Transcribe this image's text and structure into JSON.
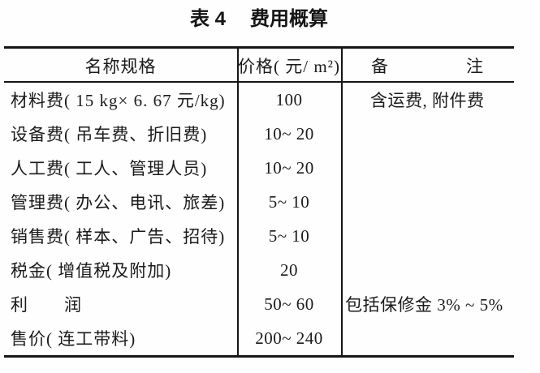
{
  "page": {
    "background": "#fefefe",
    "ink_color": "#1b1b1b",
    "rule_color": "#161616"
  },
  "title": {
    "tag": "表 4",
    "text": "费用概算"
  },
  "table": {
    "header": {
      "name": "名称规格",
      "price": "价格( 元/ m²)",
      "remark_left": "备",
      "remark_right": "注"
    },
    "rows": [
      {
        "name": "材料费( 15 kg× 6. 67 元/kg)",
        "price": "100",
        "remark": "含运费, 附件费"
      },
      {
        "name": "设备费( 吊车费、折旧费)",
        "price": "10~ 20",
        "remark": ""
      },
      {
        "name": "人工费( 工人、管理人员)",
        "price": "10~ 20",
        "remark": ""
      },
      {
        "name": "管理费( 办公、电讯、旅差)",
        "price": "5~ 10",
        "remark": ""
      },
      {
        "name": "销售费( 样本、广告、招待)",
        "price": "5~ 10",
        "remark": ""
      },
      {
        "name": "税金( 增值税及附加)",
        "price": "20",
        "remark": ""
      },
      {
        "name": "利　　润",
        "price": "50~ 60",
        "remark": "包括保修金 3% ~ 5%"
      },
      {
        "name": "售价( 连工带料)",
        "price": "200~ 240",
        "remark": ""
      }
    ]
  },
  "chart_data": {
    "type": "table",
    "title": "表 4 费用概算",
    "columns": [
      "名称规格",
      "价格(元/m²)",
      "备注"
    ],
    "rows": [
      [
        "材料费(15 kg×6.67 元/kg)",
        "100",
        "含运费, 附件费"
      ],
      [
        "设备费(吊车费、折旧费)",
        "10~20",
        ""
      ],
      [
        "人工费(工人、管理人员)",
        "10~20",
        ""
      ],
      [
        "管理费(办公、电讯、旅差)",
        "5~10",
        ""
      ],
      [
        "销售费(样本、广告、招待)",
        "5~10",
        ""
      ],
      [
        "税金(增值税及附加)",
        "20",
        ""
      ],
      [
        "利润",
        "50~60",
        "包括保修金 3%~5%"
      ],
      [
        "售价(连工带料)",
        "200~240",
        ""
      ]
    ]
  }
}
